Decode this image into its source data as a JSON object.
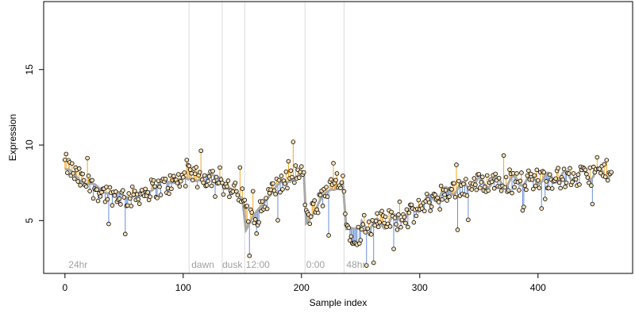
{
  "chart_data": {
    "type": "scatter",
    "title": "",
    "xlabel": "Sample index",
    "ylabel": "Expression",
    "xlim": [
      -18,
      480
    ],
    "ylim": [
      1.5,
      19.5
    ],
    "x_ticks": [
      0,
      100,
      200,
      300,
      400
    ],
    "y_ticks": [
      5,
      10,
      15
    ],
    "grid": false,
    "legend": "none",
    "colors": {
      "fit_line": "#a9a9a9",
      "residual_above": "#f5a623",
      "residual_below": "#6a8fd8",
      "condition_divider": "#dcdcdc",
      "point_fill": "#f5deb3",
      "point_stroke": "#000000"
    },
    "condition_dividers": [
      105,
      133,
      152,
      203,
      236
    ],
    "condition_labels": [
      {
        "x": 3,
        "text": "24hr"
      },
      {
        "x": 107,
        "text": "dawn"
      },
      {
        "x": 133,
        "text": "dusk"
      },
      {
        "x": 153,
        "text": "12:00"
      },
      {
        "x": 204,
        "text": "0:00"
      },
      {
        "x": 238,
        "text": "48hr"
      }
    ],
    "fitted_keypoints": [
      [
        0,
        8.4
      ],
      [
        20,
        7.4
      ],
      [
        40,
        6.8
      ],
      [
        60,
        6.6
      ],
      [
        80,
        7.4
      ],
      [
        100,
        7.8
      ],
      [
        104,
        7.6
      ],
      [
        106,
        7.7
      ],
      [
        120,
        7.9
      ],
      [
        132,
        8.0
      ],
      [
        134,
        7.2
      ],
      [
        150,
        6.6
      ],
      [
        153,
        4.5
      ],
      [
        160,
        5.2
      ],
      [
        170,
        6.5
      ],
      [
        185,
        7.6
      ],
      [
        202,
        8.0
      ],
      [
        204,
        4.8
      ],
      [
        215,
        6.2
      ],
      [
        225,
        7.1
      ],
      [
        235,
        7.4
      ],
      [
        238,
        4.3
      ],
      [
        250,
        4.7
      ],
      [
        270,
        4.8
      ],
      [
        290,
        5.4
      ],
      [
        310,
        6.5
      ],
      [
        330,
        7.1
      ],
      [
        350,
        7.5
      ],
      [
        380,
        7.6
      ],
      [
        420,
        7.9
      ],
      [
        462,
        8.2
      ]
    ],
    "observed_keypoints": [
      [
        0,
        8.8
      ],
      [
        10,
        7.9
      ],
      [
        20,
        7.3
      ],
      [
        30,
        6.9
      ],
      [
        40,
        6.7
      ],
      [
        55,
        6.5
      ],
      [
        70,
        7.0
      ],
      [
        85,
        7.3
      ],
      [
        95,
        7.6
      ],
      [
        104,
        8.0
      ],
      [
        106,
        7.9
      ],
      [
        115,
        7.8
      ],
      [
        125,
        8.0
      ],
      [
        132,
        8.1
      ],
      [
        134,
        7.3
      ],
      [
        145,
        6.8
      ],
      [
        151,
        6.4
      ],
      [
        153,
        5.7
      ],
      [
        160,
        5.0
      ],
      [
        165,
        5.6
      ],
      [
        175,
        7.0
      ],
      [
        185,
        7.5
      ],
      [
        195,
        8.1
      ],
      [
        202,
        8.0
      ],
      [
        204,
        5.1
      ],
      [
        212,
        5.8
      ],
      [
        220,
        6.8
      ],
      [
        230,
        7.7
      ],
      [
        235,
        7.9
      ],
      [
        238,
        4.6
      ],
      [
        245,
        4.0
      ],
      [
        255,
        4.3
      ],
      [
        265,
        4.9
      ],
      [
        275,
        5.1
      ],
      [
        285,
        5.0
      ],
      [
        295,
        5.5
      ],
      [
        305,
        6.1
      ],
      [
        315,
        6.6
      ],
      [
        325,
        7.0
      ],
      [
        340,
        7.3
      ],
      [
        360,
        7.6
      ],
      [
        380,
        7.5
      ],
      [
        400,
        7.8
      ],
      [
        420,
        7.8
      ],
      [
        440,
        7.9
      ],
      [
        462,
        8.4
      ]
    ],
    "n_points": 463
  }
}
